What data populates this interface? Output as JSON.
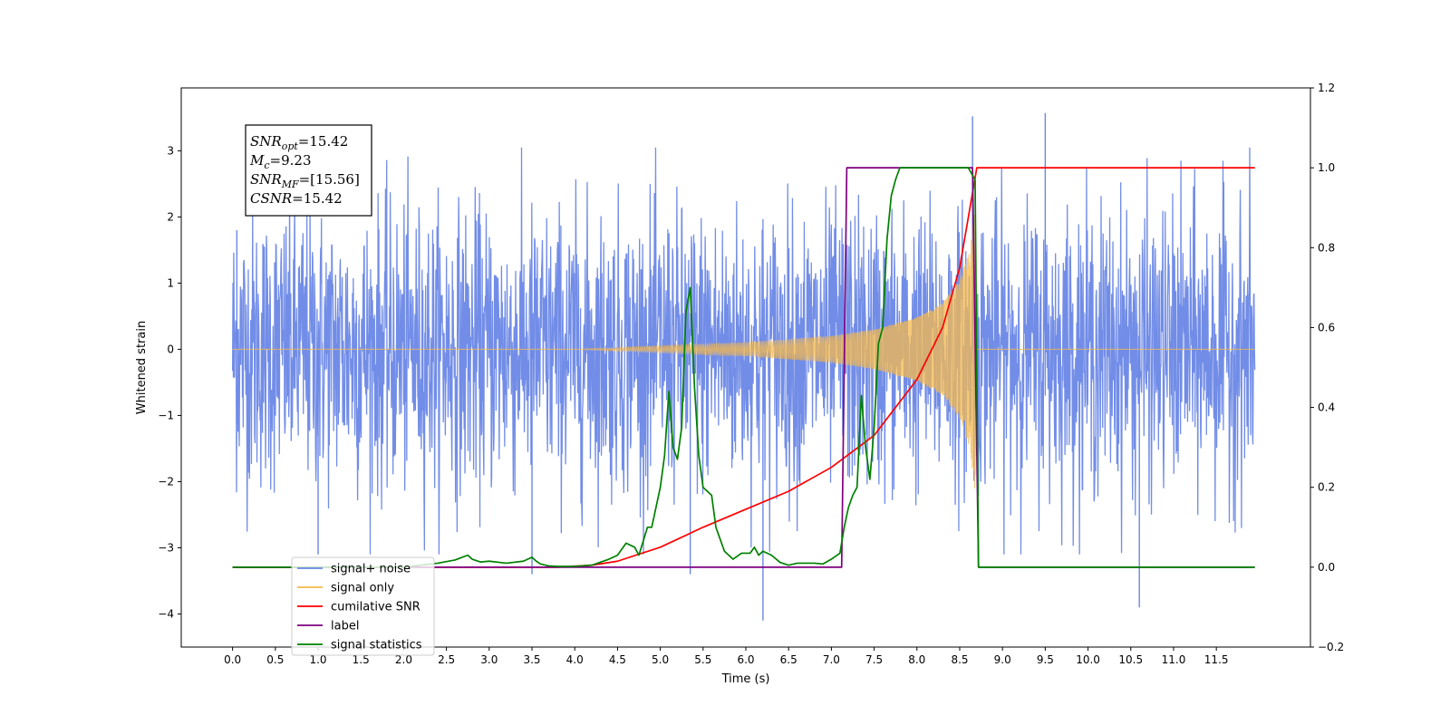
{
  "chart_data": {
    "type": "line",
    "xlabel": "Time (s)",
    "ylabel": "Whitened strain",
    "xlim": [
      -0.6,
      12.6
    ],
    "ylim": [
      -4.5,
      3.95
    ],
    "y2lim": [
      -0.2,
      1.2
    ],
    "grid": false,
    "legend_position": "bottom-left",
    "x_ticks": [
      "0.0",
      "0.5",
      "1.0",
      "1.5",
      "2.0",
      "2.5",
      "3.0",
      "3.5",
      "4.0",
      "4.5",
      "5.0",
      "5.5",
      "6.0",
      "6.5",
      "7.0",
      "7.5",
      "8.0",
      "8.5",
      "9.0",
      "9.5",
      "10.0",
      "10.5",
      "11.0",
      "11.5"
    ],
    "y_ticks": [
      "3",
      "2",
      "1",
      "0",
      "−1",
      "−2",
      "−3",
      "−4"
    ],
    "y2_ticks": [
      "1.2",
      "1.0",
      "0.8",
      "0.6",
      "0.4",
      "0.2",
      "0.0",
      "−0.2"
    ],
    "series": [
      {
        "name": "signal+ noise",
        "color": "#6a87e6",
        "axis": "left",
        "noise_std": 1.05,
        "spikes": [
          [
            1.0,
            -3.1
          ],
          [
            3.5,
            -3.4
          ],
          [
            5.35,
            -3.4
          ],
          [
            6.2,
            -4.1
          ],
          [
            8.65,
            3.52
          ],
          [
            9.5,
            3.57
          ],
          [
            10.6,
            -3.9
          ],
          [
            0.05,
            1.8
          ]
        ]
      },
      {
        "name": "signal only",
        "color": "#f5b94d",
        "axis": "left",
        "start": 4.0,
        "merger": 8.7,
        "envelope": [
          [
            4.0,
            0.0
          ],
          [
            5.0,
            0.05
          ],
          [
            6.0,
            0.1
          ],
          [
            7.0,
            0.2
          ],
          [
            7.5,
            0.3
          ],
          [
            8.0,
            0.48
          ],
          [
            8.3,
            0.7
          ],
          [
            8.5,
            1.05
          ],
          [
            8.62,
            1.5
          ],
          [
            8.68,
            2.2
          ],
          [
            8.7,
            0.0
          ]
        ]
      },
      {
        "name": "cumilative SNR",
        "color": "#ff0000",
        "axis": "right",
        "x": [
          0.0,
          3.8,
          4.2,
          4.5,
          5.0,
          5.5,
          6.0,
          6.5,
          7.0,
          7.5,
          8.0,
          8.3,
          8.5,
          8.62,
          8.7,
          8.72,
          11.95
        ],
        "y": [
          0.0,
          0.0,
          0.005,
          0.015,
          0.05,
          0.1,
          0.145,
          0.19,
          0.25,
          0.33,
          0.47,
          0.6,
          0.75,
          0.9,
          1.0,
          1.0,
          1.0
        ]
      },
      {
        "name": "label",
        "color": "#800080",
        "axis": "right",
        "x": [
          0.0,
          7.12,
          7.18,
          8.65,
          8.72,
          11.95
        ],
        "y": [
          0.0,
          0.0,
          1.0,
          1.0,
          0.0,
          0.0
        ]
      },
      {
        "name": "signal statistics",
        "color": "#008000",
        "axis": "right",
        "x": [
          0.0,
          2.0,
          2.2,
          2.4,
          2.6,
          2.75,
          2.8,
          2.9,
          3.0,
          3.2,
          3.4,
          3.5,
          3.55,
          3.6,
          3.7,
          3.8,
          4.0,
          4.2,
          4.4,
          4.5,
          4.6,
          4.7,
          4.75,
          4.85,
          4.9,
          5.0,
          5.05,
          5.1,
          5.15,
          5.2,
          5.25,
          5.3,
          5.35,
          5.4,
          5.45,
          5.5,
          5.6,
          5.65,
          5.75,
          5.85,
          5.95,
          6.05,
          6.1,
          6.15,
          6.2,
          6.3,
          6.4,
          6.5,
          6.6,
          6.7,
          6.8,
          6.9,
          7.0,
          7.1,
          7.15,
          7.2,
          7.25,
          7.3,
          7.35,
          7.4,
          7.45,
          7.5,
          7.55,
          7.6,
          7.65,
          7.7,
          7.75,
          7.8,
          7.85,
          7.9,
          8.0,
          8.5,
          8.6,
          8.68,
          8.72,
          11.95
        ],
        "y": [
          0.0,
          0.0,
          0.005,
          0.01,
          0.018,
          0.03,
          0.02,
          0.013,
          0.015,
          0.01,
          0.015,
          0.025,
          0.015,
          0.008,
          0.003,
          0.002,
          0.002,
          0.005,
          0.02,
          0.03,
          0.06,
          0.05,
          0.03,
          0.1,
          0.1,
          0.2,
          0.28,
          0.44,
          0.3,
          0.27,
          0.35,
          0.64,
          0.7,
          0.45,
          0.28,
          0.2,
          0.18,
          0.1,
          0.04,
          0.02,
          0.035,
          0.035,
          0.05,
          0.03,
          0.04,
          0.03,
          0.012,
          0.005,
          0.01,
          0.01,
          0.01,
          0.008,
          0.02,
          0.035,
          0.1,
          0.15,
          0.18,
          0.2,
          0.43,
          0.3,
          0.22,
          0.35,
          0.56,
          0.6,
          0.82,
          0.93,
          0.97,
          1.0,
          1.0,
          1.0,
          1.0,
          1.0,
          1.0,
          0.97,
          0.0,
          0.0
        ]
      }
    ],
    "annotations": [
      {
        "label": "SNR",
        "sub": "opt",
        "value": "=15.42"
      },
      {
        "label": "M",
        "sub": "c",
        "value": "=9.23"
      },
      {
        "label": "SNR",
        "sub": "MF",
        "value": "=[15.56]"
      },
      {
        "label": "CSNR",
        "sub": "",
        "value": "=15.42"
      }
    ],
    "legend": [
      {
        "name": "signal+ noise",
        "color": "#6a87e6"
      },
      {
        "name": "signal only",
        "color": "#f5b94d"
      },
      {
        "name": "cumilative SNR",
        "color": "#ff0000"
      },
      {
        "name": "label",
        "color": "#800080"
      },
      {
        "name": "signal statistics",
        "color": "#008000"
      }
    ]
  }
}
